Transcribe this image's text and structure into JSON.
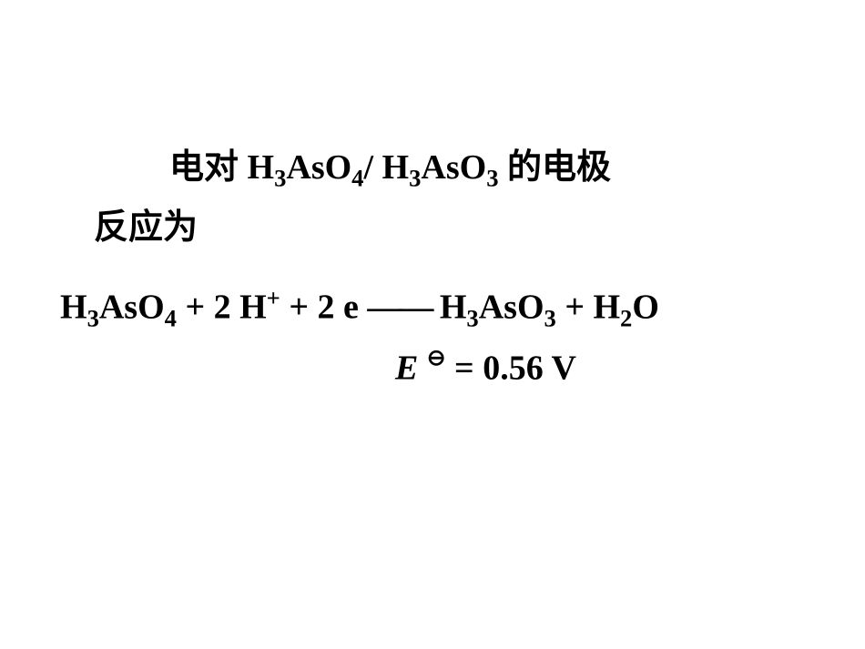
{
  "text": {
    "intro_part1_prefix": "电对 ",
    "intro_part2": "反应为",
    "couple_sep": "/ ",
    "intro_suffix": " 的电极",
    "species1_H": "H",
    "species1_sub3": "3",
    "species1_AsO": "AsO",
    "species1_sub4": "4",
    "species2_H": "H",
    "species2_sub3": "3",
    "species2_AsO": "AsO",
    "species2_sub3b": "3",
    "eq_H3AsO4_H": "H",
    "eq_H3AsO4_3": "3",
    "eq_H3AsO4_AsO": "AsO",
    "eq_H3AsO4_4": "4",
    "eq_plus1": "  +  2 H",
    "eq_Hplus_sup": "+",
    "eq_plus2": "  +  2 e ",
    "eq_dash": "——",
    "eq_space": " ",
    "eq_H3AsO3_H": "H",
    "eq_H3AsO3_3": "3",
    "eq_H3AsO3_AsO": "AsO",
    "eq_H3AsO3_3b": "3",
    "eq_plus3": "  +  H",
    "eq_H2O_2": "2",
    "eq_H2O_O": "O",
    "E_symbol": "E",
    "E_theta": "⊖",
    "E_equals": "  =  0.56  V"
  },
  "style": {
    "background_color": "#ffffff",
    "text_color": "#000000",
    "font_size_main": 38,
    "font_weight": "bold",
    "font_family": "Times New Roman, SimSun, serif"
  }
}
